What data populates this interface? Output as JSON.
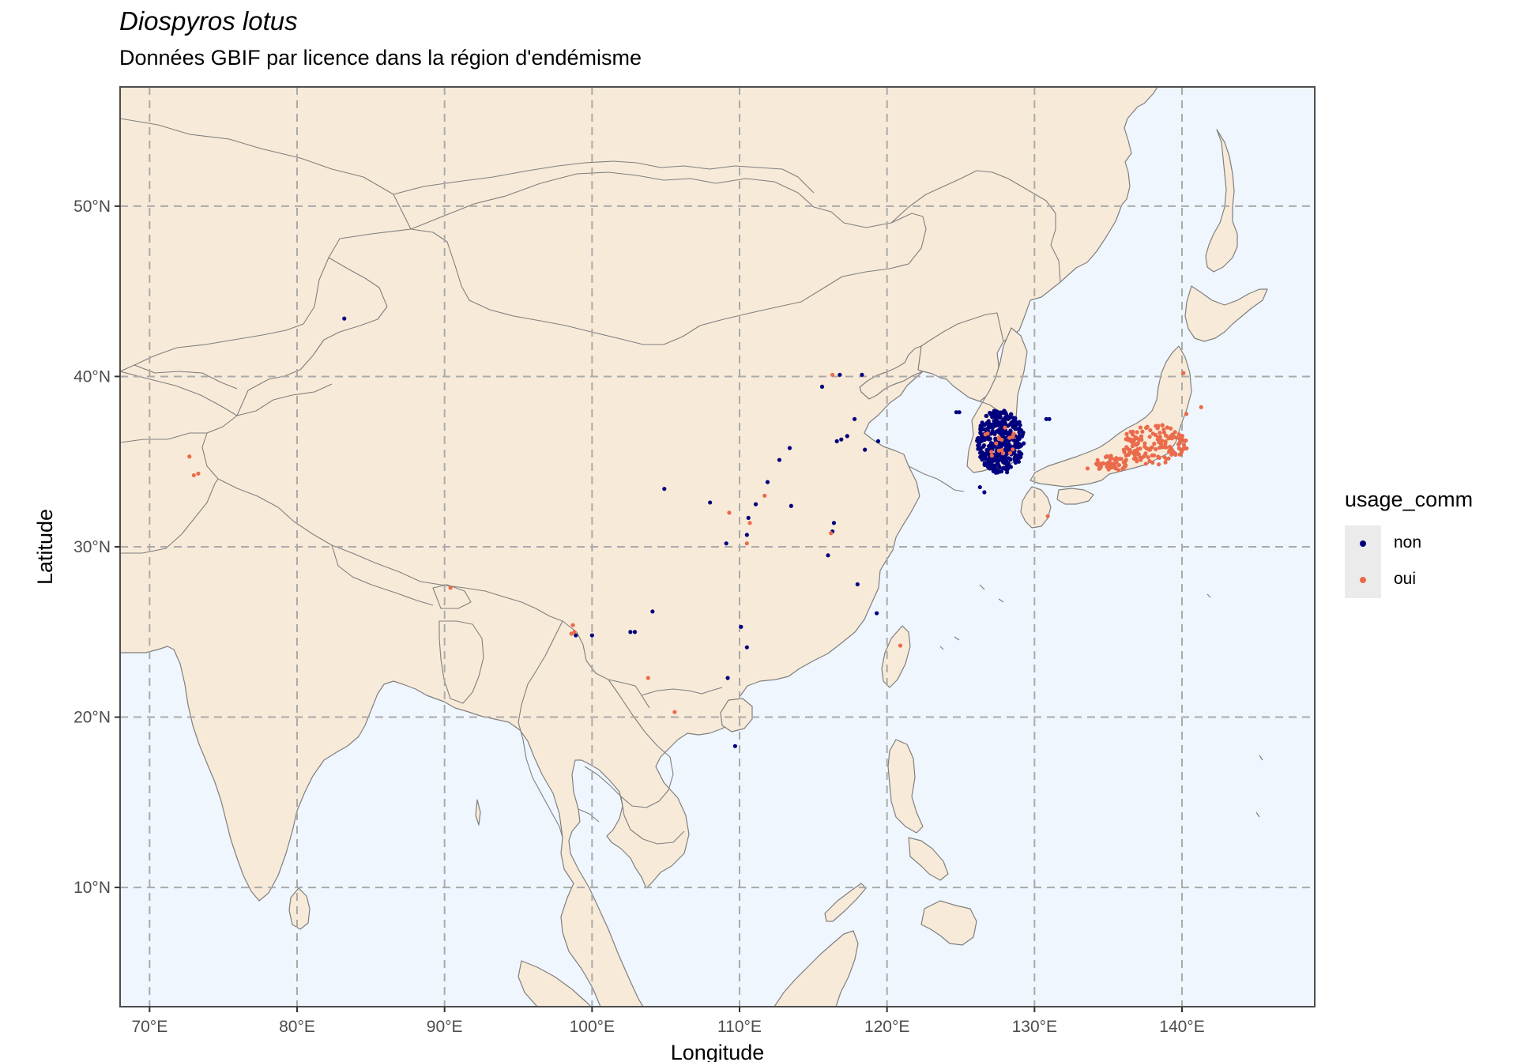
{
  "title": "Diospyros lotus",
  "subtitle": "Données GBIF par licence dans la région d'endémisme",
  "colors": {
    "sea": "#eff6fe",
    "land": "#f8ead8",
    "border": "#7f7f7f",
    "grid": "#aaaaaa",
    "non": "#00007f",
    "oui": "#ea6b4b"
  },
  "chart_data": {
    "type": "scatter",
    "xlabel": "Longitude",
    "ylabel": "Latitude",
    "xlim": [
      68,
      149
    ],
    "ylim": [
      3,
      57
    ],
    "x_ticks": [
      70,
      80,
      90,
      100,
      110,
      120,
      130,
      140
    ],
    "y_ticks": [
      10,
      20,
      30,
      40,
      50
    ],
    "x_tick_labels": [
      "70°E",
      "80°E",
      "90°E",
      "100°E",
      "110°E",
      "120°E",
      "130°E",
      "140°E"
    ],
    "y_tick_labels": [
      "10°N",
      "20°N",
      "30°N",
      "40°N",
      "50°N"
    ],
    "grid": "dashed",
    "legend_title": "usage_comm",
    "legend_position": "right",
    "series": [
      {
        "name": "non",
        "color": "#00007f",
        "points": [
          [
            83.2,
            43.4
          ],
          [
            116.8,
            40.1
          ],
          [
            115.6,
            39.4
          ],
          [
            118.3,
            40.1
          ],
          [
            117.8,
            37.5
          ],
          [
            117.3,
            36.5
          ],
          [
            116.9,
            36.3
          ],
          [
            116.6,
            36.2
          ],
          [
            118.5,
            35.7
          ],
          [
            113.4,
            35.8
          ],
          [
            112.7,
            35.1
          ],
          [
            119.4,
            36.2
          ],
          [
            104.9,
            33.4
          ],
          [
            111.9,
            33.8
          ],
          [
            111.1,
            32.5
          ],
          [
            113.5,
            32.4
          ],
          [
            108.0,
            32.6
          ],
          [
            110.6,
            31.7
          ],
          [
            110.5,
            30.7
          ],
          [
            109.1,
            30.2
          ],
          [
            116.4,
            31.4
          ],
          [
            116.3,
            30.9
          ],
          [
            116.0,
            29.5
          ],
          [
            118.0,
            27.8
          ],
          [
            119.3,
            26.1
          ],
          [
            104.1,
            26.2
          ],
          [
            102.9,
            25.0
          ],
          [
            102.6,
            25.0
          ],
          [
            100.0,
            24.8
          ],
          [
            110.5,
            24.1
          ],
          [
            110.1,
            25.3
          ],
          [
            109.2,
            22.3
          ],
          [
            109.7,
            18.3
          ],
          [
            98.9,
            24.8
          ],
          [
            124.9,
            37.9
          ],
          [
            124.7,
            37.9
          ],
          [
            131.0,
            37.5
          ],
          [
            130.8,
            37.5
          ],
          [
            126.3,
            33.5
          ],
          [
            126.6,
            33.2
          ]
        ]
      },
      {
        "name": "oui",
        "color": "#ea6b4b",
        "points": [
          [
            72.7,
            35.3
          ],
          [
            73.3,
            34.3
          ],
          [
            73.0,
            34.2
          ],
          [
            90.4,
            27.6
          ],
          [
            98.7,
            25.4
          ],
          [
            98.8,
            25.0
          ],
          [
            98.6,
            24.9
          ],
          [
            103.8,
            22.3
          ],
          [
            105.6,
            20.3
          ],
          [
            116.3,
            40.1
          ],
          [
            109.3,
            32.0
          ],
          [
            111.7,
            33.0
          ],
          [
            110.7,
            31.4
          ],
          [
            110.5,
            30.2
          ],
          [
            116.2,
            30.8
          ],
          [
            120.9,
            24.2
          ],
          [
            130.9,
            31.8
          ],
          [
            134.5,
            34.7
          ],
          [
            136.1,
            35.0
          ],
          [
            137.2,
            35.1
          ],
          [
            135.5,
            34.6
          ],
          [
            133.6,
            34.6
          ],
          [
            139.8,
            36.6
          ],
          [
            140.1,
            40.2
          ],
          [
            141.3,
            38.2
          ],
          [
            140.3,
            37.8
          ]
        ]
      }
    ],
    "clusters": [
      {
        "series": "non",
        "center": [
          127.7,
          36.2
        ],
        "spread": [
          1.6,
          1.9
        ],
        "count": 420
      },
      {
        "series": "oui",
        "center": [
          138.1,
          36.0
        ],
        "spread": [
          2.3,
          1.2
        ],
        "count": 150
      },
      {
        "series": "oui",
        "center": [
          135.2,
          34.9
        ],
        "spread": [
          1.2,
          0.45
        ],
        "count": 45
      },
      {
        "series": "oui",
        "center": [
          127.5,
          36.2
        ],
        "spread": [
          1.2,
          1.3
        ],
        "count": 20
      }
    ]
  }
}
